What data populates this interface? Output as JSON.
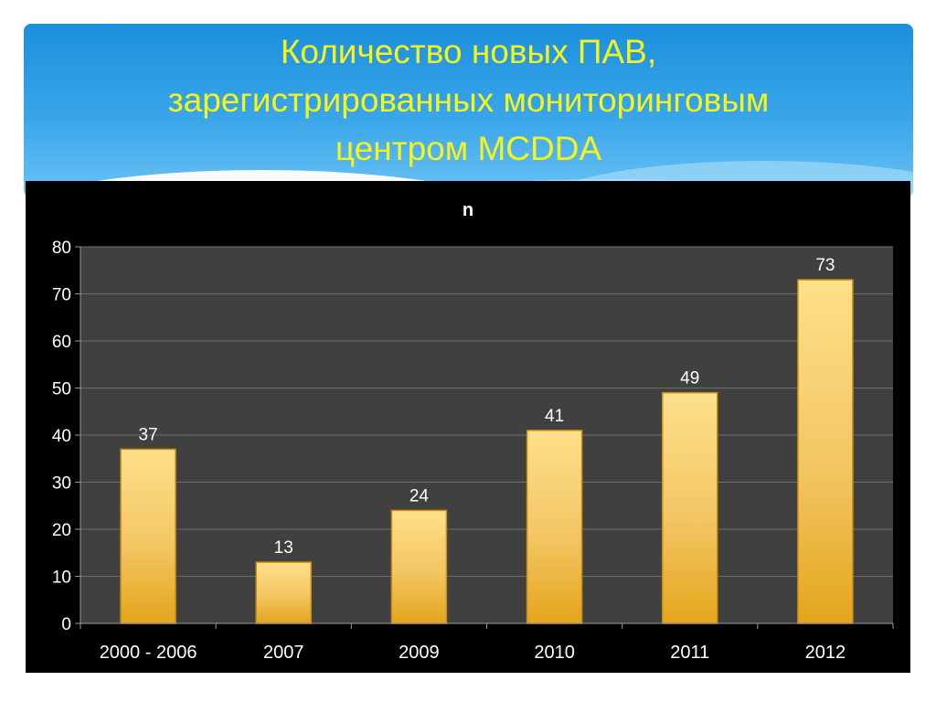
{
  "slide": {
    "title_lines": [
      "Количество новых ПАВ,",
      "зарегистрированных мониторинговым",
      "центром MCDDA"
    ]
  },
  "colors": {
    "title": "#f4f41e",
    "banner": "#2d9be3",
    "chart_background": "#000000",
    "plot_area": "#404040",
    "bar_top": "#fde08a",
    "bar_bottom": "#e6a920",
    "text": "#ffffff"
  },
  "chart_data": {
    "type": "bar",
    "title": "n",
    "categories": [
      "2000 - 2006",
      "2007",
      "2009",
      "2010",
      "2011",
      "2012"
    ],
    "values": [
      37,
      13,
      24,
      41,
      49,
      73
    ],
    "xlabel": "",
    "ylabel": "",
    "ylim": [
      0,
      80
    ],
    "yticks": [
      0,
      10,
      20,
      30,
      40,
      50,
      60,
      70,
      80
    ],
    "grid": true,
    "legend": "none",
    "data_labels": true
  }
}
